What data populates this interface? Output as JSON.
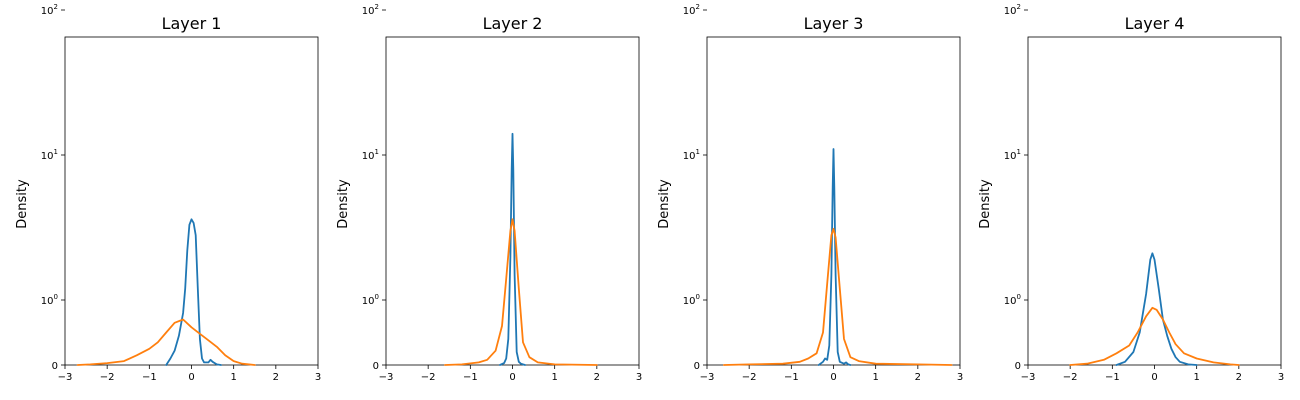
{
  "chart_data": [
    {
      "type": "line",
      "title": "Layer 1",
      "ylabel": "Density",
      "xlim": [
        -3,
        3
      ],
      "x_ticks": [
        "−3",
        "−2",
        "−1",
        "0",
        "1",
        "2",
        "3"
      ],
      "yscale": "symlog",
      "y_ticks": [
        {
          "value": 0,
          "label": "0"
        },
        {
          "value": 1,
          "label": "10^0"
        },
        {
          "value": 10,
          "label": "10^1"
        },
        {
          "value": 100,
          "label": "10^2"
        }
      ],
      "series": [
        {
          "color": "#1f77b4",
          "points": [
            [
              -0.6,
              0
            ],
            [
              -0.5,
              0.1
            ],
            [
              -0.4,
              0.22
            ],
            [
              -0.3,
              0.45
            ],
            [
              -0.2,
              0.8
            ],
            [
              -0.15,
              1.2
            ],
            [
              -0.1,
              2.2
            ],
            [
              -0.05,
              3.3
            ],
            [
              0,
              3.6
            ],
            [
              0.05,
              3.4
            ],
            [
              0.1,
              2.8
            ],
            [
              0.15,
              1.2
            ],
            [
              0.2,
              0.4
            ],
            [
              0.25,
              0.1
            ],
            [
              0.3,
              0.04
            ],
            [
              0.4,
              0.04
            ],
            [
              0.45,
              0.08
            ],
            [
              0.5,
              0.05
            ],
            [
              0.6,
              0.01
            ],
            [
              0.7,
              0
            ]
          ]
        },
        {
          "color": "#ff7f0e",
          "points": [
            [
              -2.7,
              0
            ],
            [
              -2.4,
              0.01
            ],
            [
              -2.0,
              0.03
            ],
            [
              -1.6,
              0.06
            ],
            [
              -1.3,
              0.15
            ],
            [
              -1.0,
              0.25
            ],
            [
              -0.8,
              0.35
            ],
            [
              -0.6,
              0.5
            ],
            [
              -0.4,
              0.65
            ],
            [
              -0.2,
              0.7
            ],
            [
              0,
              0.58
            ],
            [
              0.2,
              0.48
            ],
            [
              0.4,
              0.38
            ],
            [
              0.6,
              0.28
            ],
            [
              0.8,
              0.15
            ],
            [
              1.0,
              0.06
            ],
            [
              1.2,
              0.02
            ],
            [
              1.5,
              0
            ]
          ]
        }
      ]
    },
    {
      "type": "line",
      "title": "Layer 2",
      "ylabel": "Density",
      "xlim": [
        -3,
        3
      ],
      "x_ticks": [
        "−3",
        "−2",
        "−1",
        "0",
        "1",
        "2",
        "3"
      ],
      "yscale": "symlog",
      "y_ticks": [
        {
          "value": 0,
          "label": "0"
        },
        {
          "value": 1,
          "label": "10^0"
        },
        {
          "value": 10,
          "label": "10^1"
        },
        {
          "value": 100,
          "label": "10^2"
        }
      ],
      "series": [
        {
          "color": "#1f77b4",
          "points": [
            [
              -0.3,
              0
            ],
            [
              -0.2,
              0.03
            ],
            [
              -0.15,
              0.1
            ],
            [
              -0.1,
              0.4
            ],
            [
              -0.05,
              2
            ],
            [
              -0.02,
              8
            ],
            [
              0,
              14
            ],
            [
              0.02,
              8
            ],
            [
              0.05,
              1.5
            ],
            [
              0.1,
              0.2
            ],
            [
              0.15,
              0.05
            ],
            [
              0.2,
              0.02
            ],
            [
              0.25,
              0.01
            ],
            [
              0.3,
              0
            ]
          ]
        },
        {
          "color": "#ff7f0e",
          "points": [
            [
              -1.6,
              0
            ],
            [
              -1.2,
              0.01
            ],
            [
              -0.8,
              0.04
            ],
            [
              -0.6,
              0.08
            ],
            [
              -0.4,
              0.22
            ],
            [
              -0.25,
              0.6
            ],
            [
              -0.15,
              1.4
            ],
            [
              -0.05,
              3
            ],
            [
              0,
              3.6
            ],
            [
              0.05,
              3
            ],
            [
              0.15,
              1.2
            ],
            [
              0.25,
              0.35
            ],
            [
              0.4,
              0.12
            ],
            [
              0.6,
              0.04
            ],
            [
              1.0,
              0.01
            ],
            [
              2.0,
              0
            ]
          ]
        }
      ]
    },
    {
      "type": "line",
      "title": "Layer 3",
      "ylabel": "Density",
      "xlim": [
        -3,
        3
      ],
      "x_ticks": [
        "−3",
        "−2",
        "−1",
        "0",
        "1",
        "2",
        "3"
      ],
      "yscale": "symlog",
      "y_ticks": [
        {
          "value": 0,
          "label": "0"
        },
        {
          "value": 1,
          "label": "10^0"
        },
        {
          "value": 10,
          "label": "10^1"
        },
        {
          "value": 100,
          "label": "10^2"
        }
      ],
      "series": [
        {
          "color": "#1f77b4",
          "points": [
            [
              -0.35,
              0
            ],
            [
              -0.25,
              0.05
            ],
            [
              -0.2,
              0.1
            ],
            [
              -0.15,
              0.08
            ],
            [
              -0.1,
              0.3
            ],
            [
              -0.05,
              1.5
            ],
            [
              -0.02,
              6
            ],
            [
              0,
              11
            ],
            [
              0.02,
              6
            ],
            [
              0.05,
              1.5
            ],
            [
              0.1,
              0.2
            ],
            [
              0.15,
              0.05
            ],
            [
              0.25,
              0.02
            ],
            [
              0.3,
              0.04
            ],
            [
              0.35,
              0.01
            ],
            [
              0.4,
              0
            ]
          ]
        },
        {
          "color": "#ff7f0e",
          "points": [
            [
              -2.6,
              0
            ],
            [
              -2.0,
              0.01
            ],
            [
              -1.2,
              0.02
            ],
            [
              -0.8,
              0.05
            ],
            [
              -0.6,
              0.1
            ],
            [
              -0.4,
              0.18
            ],
            [
              -0.25,
              0.5
            ],
            [
              -0.15,
              1.3
            ],
            [
              -0.05,
              2.8
            ],
            [
              0,
              3.1
            ],
            [
              0.05,
              2.7
            ],
            [
              0.15,
              1.2
            ],
            [
              0.25,
              0.4
            ],
            [
              0.4,
              0.12
            ],
            [
              0.6,
              0.06
            ],
            [
              1.0,
              0.02
            ],
            [
              2.0,
              0.01
            ],
            [
              2.8,
              0
            ]
          ]
        }
      ]
    },
    {
      "type": "line",
      "title": "Layer 4",
      "ylabel": "Density",
      "xlim": [
        -3,
        3
      ],
      "x_ticks": [
        "−3",
        "−2",
        "−1",
        "0",
        "1",
        "2",
        "3"
      ],
      "yscale": "symlog",
      "y_ticks": [
        {
          "value": 0,
          "label": "0"
        },
        {
          "value": 1,
          "label": "10^0"
        },
        {
          "value": 10,
          "label": "10^1"
        },
        {
          "value": 100,
          "label": "10^2"
        }
      ],
      "series": [
        {
          "color": "#1f77b4",
          "points": [
            [
              -0.9,
              0
            ],
            [
              -0.7,
              0.05
            ],
            [
              -0.5,
              0.2
            ],
            [
              -0.35,
              0.5
            ],
            [
              -0.2,
              1.1
            ],
            [
              -0.1,
              1.9
            ],
            [
              -0.05,
              2.1
            ],
            [
              0,
              1.9
            ],
            [
              0.1,
              1.2
            ],
            [
              0.2,
              0.7
            ],
            [
              0.3,
              0.45
            ],
            [
              0.4,
              0.25
            ],
            [
              0.5,
              0.12
            ],
            [
              0.6,
              0.05
            ],
            [
              0.8,
              0.01
            ],
            [
              1.0,
              0
            ]
          ]
        },
        {
          "color": "#ff7f0e",
          "points": [
            [
              -2.0,
              0
            ],
            [
              -1.6,
              0.02
            ],
            [
              -1.2,
              0.08
            ],
            [
              -0.9,
              0.18
            ],
            [
              -0.6,
              0.3
            ],
            [
              -0.4,
              0.5
            ],
            [
              -0.2,
              0.75
            ],
            [
              -0.05,
              0.88
            ],
            [
              0.05,
              0.85
            ],
            [
              0.2,
              0.7
            ],
            [
              0.35,
              0.5
            ],
            [
              0.5,
              0.32
            ],
            [
              0.7,
              0.18
            ],
            [
              1.0,
              0.1
            ],
            [
              1.4,
              0.04
            ],
            [
              1.8,
              0.01
            ],
            [
              2.0,
              0
            ]
          ]
        }
      ]
    }
  ]
}
